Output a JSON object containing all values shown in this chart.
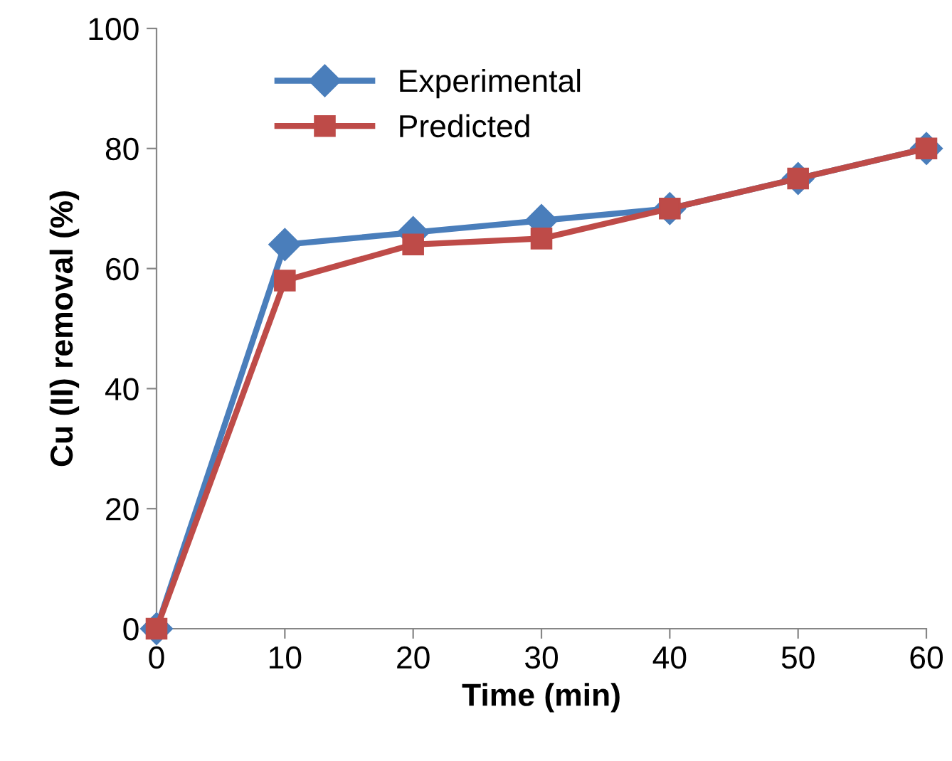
{
  "chart_data": {
    "type": "line",
    "xlabel": "Time (min)",
    "ylabel": "Cu (II) removal (%)",
    "x": [
      0,
      10,
      20,
      30,
      40,
      50,
      60
    ],
    "series": [
      {
        "name": "Experimental",
        "color": "#4a7ebb",
        "marker": "diamond",
        "values": [
          0,
          64,
          66,
          68,
          70,
          75,
          80
        ]
      },
      {
        "name": "Predicted",
        "color": "#be4b48",
        "marker": "square",
        "values": [
          0,
          58,
          64,
          65,
          70,
          75,
          80
        ]
      }
    ],
    "xlim": [
      0,
      60
    ],
    "xticks": [
      0,
      10,
      20,
      30,
      40,
      50,
      60
    ],
    "ylim": [
      0,
      100
    ],
    "yticks": [
      0,
      20,
      40,
      60,
      80,
      100
    ],
    "grid": false,
    "legend": "top left",
    "line_style": "solid"
  }
}
